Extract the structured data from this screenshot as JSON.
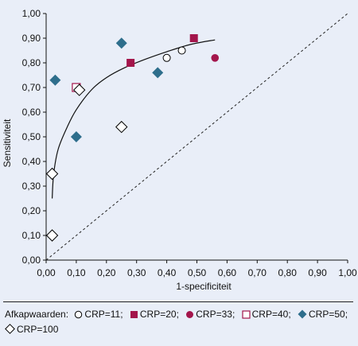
{
  "chart_data": {
    "type": "scatter",
    "xlabel": "1-specificiteit",
    "ylabel": "Sensitiviteit",
    "xlim": [
      0,
      1
    ],
    "ylim": [
      0,
      1
    ],
    "x_ticks": [
      "0,00",
      "0,10",
      "0,20",
      "0,30",
      "0,40",
      "0,50",
      "0,60",
      "0,70",
      "0,80",
      "0,90",
      "1,00"
    ],
    "y_ticks": [
      "0,00",
      "0,10",
      "0,20",
      "0,30",
      "0,40",
      "0,50",
      "0,60",
      "0,70",
      "0,80",
      "0,90",
      "1,00"
    ],
    "reference_line": {
      "from": [
        0,
        0
      ],
      "to": [
        1,
        1
      ],
      "style": "dotted"
    },
    "fitted_curve": {
      "points": [
        [
          0.02,
          0.25
        ],
        [
          0.025,
          0.35
        ],
        [
          0.04,
          0.45
        ],
        [
          0.07,
          0.54
        ],
        [
          0.1,
          0.61
        ],
        [
          0.15,
          0.69
        ],
        [
          0.2,
          0.74
        ],
        [
          0.26,
          0.78
        ],
        [
          0.33,
          0.815
        ],
        [
          0.4,
          0.845
        ],
        [
          0.48,
          0.875
        ],
        [
          0.56,
          0.893
        ]
      ]
    },
    "series": [
      {
        "name": "CRP=11",
        "marker": "open-circle",
        "color": "#000000",
        "points": [
          [
            0.4,
            0.82
          ],
          [
            0.45,
            0.85
          ]
        ]
      },
      {
        "name": "CRP=20",
        "marker": "filled-square",
        "color": "#a3154b",
        "points": [
          [
            0.28,
            0.8
          ],
          [
            0.49,
            0.9
          ]
        ]
      },
      {
        "name": "CRP=33",
        "marker": "filled-circle",
        "color": "#a3154b",
        "points": [
          [
            0.56,
            0.82
          ]
        ]
      },
      {
        "name": "CRP=40",
        "marker": "open-square",
        "color": "#a3154b",
        "points": [
          [
            0.1,
            0.7
          ]
        ]
      },
      {
        "name": "CRP=50",
        "marker": "filled-diamond",
        "color": "#2e6e8c",
        "points": [
          [
            0.03,
            0.73
          ],
          [
            0.1,
            0.5
          ],
          [
            0.25,
            0.88
          ],
          [
            0.37,
            0.76
          ]
        ]
      },
      {
        "name": "CRP=100",
        "marker": "open-diamond",
        "color": "#000000",
        "points": [
          [
            0.02,
            0.35
          ],
          [
            0.02,
            0.1
          ],
          [
            0.11,
            0.69
          ],
          [
            0.25,
            0.54
          ]
        ]
      }
    ]
  },
  "legend": {
    "title": "Afkapwaarden:",
    "items": [
      {
        "label": "CRP=11;",
        "marker": "open-circle"
      },
      {
        "label": "CRP=20;",
        "marker": "filled-square"
      },
      {
        "label": "CRP=33;",
        "marker": "filled-circle"
      },
      {
        "label": "CRP=40;",
        "marker": "open-square"
      },
      {
        "label": "CRP=50;",
        "marker": "filled-diamond"
      },
      {
        "label": "CRP=100",
        "marker": "open-diamond"
      }
    ]
  }
}
